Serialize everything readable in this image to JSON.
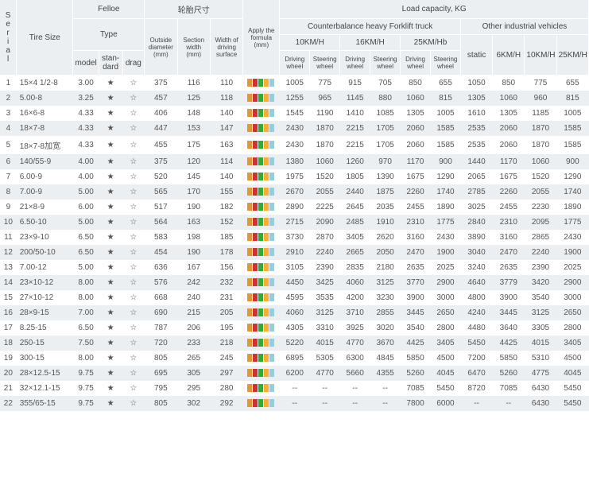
{
  "headers": {
    "serial": "S\ne\nr\ni\na\nl",
    "tire": "Tire Size",
    "felloe": "Felloe",
    "type": "Type",
    "model": "model",
    "standard": "stan-\ndard",
    "drag": "drag",
    "dims": "轮胎尺寸",
    "od": "Outside\ndiameter\n(mm)",
    "sw": "Section\nwidth\n(mm)",
    "wds": "Width of\ndriving\nsurface",
    "apply": "Apply the\nformula\n(mm)",
    "load": "Load capacity, KG",
    "counter": "Counterbalance heavy Forklift truck",
    "other": "Other industrial vehicles",
    "s10": "10KM/H",
    "s16": "16KM/H",
    "s25": "25KM/Hb",
    "drv": "Driving\nwheel",
    "str": "Steering\nwheel",
    "static": "static",
    "o6": "6KM/H",
    "o10": "10KM/H",
    "o25": "25KM/H"
  },
  "star": "★",
  "open": "☆",
  "blk_colors": [
    "#cc9933",
    "#cc3333",
    "#33aa33",
    "#ffaa33",
    "#99ccdd"
  ],
  "stripe_odd": "#ffffff",
  "stripe_even": "#ebeff2",
  "rows": [
    {
      "n": 1,
      "tire": "15×4 1/2-8",
      "model": "3.00",
      "od": 375,
      "sw": 116,
      "wds": 110,
      "d10": 1005,
      "s10": 775,
      "d16": 915,
      "s16": 705,
      "d25": 850,
      "s25": 655,
      "st": 1050,
      "o6": 850,
      "o10": 775,
      "o25": 655
    },
    {
      "n": 2,
      "tire": "5.00-8",
      "model": "3.25",
      "od": 457,
      "sw": 125,
      "wds": 118,
      "d10": 1255,
      "s10": 965,
      "d16": 1145,
      "s16": 880,
      "d25": 1060,
      "s25": 815,
      "st": 1305,
      "o6": 1060,
      "o10": 960,
      "o25": 815
    },
    {
      "n": 3,
      "tire": "16×6-8",
      "model": "4.33",
      "od": 406,
      "sw": 148,
      "wds": 140,
      "d10": 1545,
      "s10": 1190,
      "d16": 1410,
      "s16": 1085,
      "d25": 1305,
      "s25": 1005,
      "st": 1610,
      "o6": 1305,
      "o10": 1185,
      "o25": 1005
    },
    {
      "n": 4,
      "tire": "18×7-8",
      "model": "4.33",
      "od": 447,
      "sw": 153,
      "wds": 147,
      "d10": 2430,
      "s10": 1870,
      "d16": 2215,
      "s16": 1705,
      "d25": 2060,
      "s25": 1585,
      "st": 2535,
      "o6": 2060,
      "o10": 1870,
      "o25": 1585
    },
    {
      "n": 5,
      "tire": "18×7-8加宽",
      "model": "4.33",
      "od": 455,
      "sw": 175,
      "wds": 163,
      "d10": 2430,
      "s10": 1870,
      "d16": 2215,
      "s16": 1705,
      "d25": 2060,
      "s25": 1585,
      "st": 2535,
      "o6": 2060,
      "o10": 1870,
      "o25": 1585
    },
    {
      "n": 6,
      "tire": "140/55-9",
      "model": "4.00",
      "od": 375,
      "sw": 120,
      "wds": 114,
      "d10": 1380,
      "s10": 1060,
      "d16": 1260,
      "s16": 970,
      "d25": 1170,
      "s25": 900,
      "st": 1440,
      "o6": 1170,
      "o10": 1060,
      "o25": 900
    },
    {
      "n": 7,
      "tire": "6.00-9",
      "model": "4.00",
      "od": 520,
      "sw": 145,
      "wds": 140,
      "d10": 1975,
      "s10": 1520,
      "d16": 1805,
      "s16": 1390,
      "d25": 1675,
      "s25": 1290,
      "st": 2065,
      "o6": 1675,
      "o10": 1520,
      "o25": 1290
    },
    {
      "n": 8,
      "tire": "7.00-9",
      "model": "5.00",
      "od": 565,
      "sw": 170,
      "wds": 155,
      "d10": 2670,
      "s10": 2055,
      "d16": 2440,
      "s16": 1875,
      "d25": 2260,
      "s25": 1740,
      "st": 2785,
      "o6": 2260,
      "o10": 2055,
      "o25": 1740
    },
    {
      "n": 9,
      "tire": "21×8-9",
      "model": "6.00",
      "od": 517,
      "sw": 190,
      "wds": 182,
      "d10": 2890,
      "s10": 2225,
      "d16": 2645,
      "s16": 2035,
      "d25": 2455,
      "s25": 1890,
      "st": 3025,
      "o6": 2455,
      "o10": 2230,
      "o25": 1890
    },
    {
      "n": 10,
      "tire": "6.50-10",
      "model": "5.00",
      "od": 564,
      "sw": 163,
      "wds": 152,
      "d10": 2715,
      "s10": 2090,
      "d16": 2485,
      "s16": 1910,
      "d25": 2310,
      "s25": 1775,
      "st": 2840,
      "o6": 2310,
      "o10": 2095,
      "o25": 1775
    },
    {
      "n": 11,
      "tire": "23×9-10",
      "model": "6.50",
      "od": 583,
      "sw": 198,
      "wds": 185,
      "d10": 3730,
      "s10": 2870,
      "d16": 3405,
      "s16": 2620,
      "d25": 3160,
      "s25": 2430,
      "st": 3890,
      "o6": 3160,
      "o10": 2865,
      "o25": 2430
    },
    {
      "n": 12,
      "tire": "200/50-10",
      "model": "6.50",
      "od": 454,
      "sw": 190,
      "wds": 178,
      "d10": 2910,
      "s10": 2240,
      "d16": 2665,
      "s16": 2050,
      "d25": 2470,
      "s25": 1900,
      "st": 3040,
      "o6": 2470,
      "o10": 2240,
      "o25": 1900
    },
    {
      "n": 13,
      "tire": "7.00-12",
      "model": "5.00",
      "od": 636,
      "sw": 167,
      "wds": 156,
      "d10": 3105,
      "s10": 2390,
      "d16": 2835,
      "s16": 2180,
      "d25": 2635,
      "s25": 2025,
      "st": 3240,
      "o6": 2635,
      "o10": 2390,
      "o25": 2025
    },
    {
      "n": 14,
      "tire": "23×10-12",
      "model": "8.00",
      "od": 576,
      "sw": 242,
      "wds": 232,
      "d10": 4450,
      "s10": 3425,
      "d16": 4060,
      "s16": 3125,
      "d25": 3770,
      "s25": 2900,
      "st": 4640,
      "o6": 3779,
      "o10": 3420,
      "o25": 2900
    },
    {
      "n": 15,
      "tire": "27×10-12",
      "model": "8.00",
      "od": 668,
      "sw": 240,
      "wds": 231,
      "d10": 4595,
      "s10": 3535,
      "d16": 4200,
      "s16": 3230,
      "d25": 3900,
      "s25": 3000,
      "st": 4800,
      "o6": 3900,
      "o10": 3540,
      "o25": 3000
    },
    {
      "n": 16,
      "tire": "28×9-15",
      "model": "7.00",
      "od": 690,
      "sw": 215,
      "wds": 205,
      "d10": 4060,
      "s10": 3125,
      "d16": 3710,
      "s16": 2855,
      "d25": 3445,
      "s25": 2650,
      "st": 4240,
      "o6": 3445,
      "o10": 3125,
      "o25": 2650
    },
    {
      "n": 17,
      "tire": "8.25-15",
      "model": "6.50",
      "od": 787,
      "sw": 206,
      "wds": 195,
      "d10": 4305,
      "s10": 3310,
      "d16": 3925,
      "s16": 3020,
      "d25": 3540,
      "s25": 2800,
      "st": 4480,
      "o6": 3640,
      "o10": 3305,
      "o25": 2800
    },
    {
      "n": 18,
      "tire": "250-15",
      "model": "7.50",
      "od": 720,
      "sw": 233,
      "wds": 218,
      "d10": 5220,
      "s10": 4015,
      "d16": 4770,
      "s16": 3670,
      "d25": 4425,
      "s25": 3405,
      "st": 5450,
      "o6": 4425,
      "o10": 4015,
      "o25": 3405
    },
    {
      "n": 19,
      "tire": "300-15",
      "model": "8.00",
      "od": 805,
      "sw": 265,
      "wds": 245,
      "d10": 6895,
      "s10": 5305,
      "d16": 6300,
      "s16": 4845,
      "d25": 5850,
      "s25": 4500,
      "st": 7200,
      "o6": 5850,
      "o10": 5310,
      "o25": 4500
    },
    {
      "n": 20,
      "tire": "28×12.5-15",
      "model": "9.75",
      "od": 695,
      "sw": 305,
      "wds": 297,
      "d10": 6200,
      "s10": 4770,
      "d16": 5660,
      "s16": 4355,
      "d25": 5260,
      "s25": 4045,
      "st": 6470,
      "o6": 5260,
      "o10": 4775,
      "o25": 4045
    },
    {
      "n": 21,
      "tire": "32×12.1-15",
      "model": "9.75",
      "od": 795,
      "sw": 295,
      "wds": 280,
      "d10": "--",
      "s10": "--",
      "d16": "--",
      "s16": "--",
      "d25": 7085,
      "s25": 5450,
      "st": 8720,
      "o6": 7085,
      "o10": 6430,
      "o25": 5450
    },
    {
      "n": 22,
      "tire": "355/65-15",
      "model": "9.75",
      "od": 805,
      "sw": 302,
      "wds": 292,
      "d10": "--",
      "s10": "--",
      "d16": "--",
      "s16": "--",
      "d25": 7800,
      "s25": 6000,
      "st": "--",
      "o6": "--",
      "o10": 6430,
      "o25": 5450
    }
  ]
}
